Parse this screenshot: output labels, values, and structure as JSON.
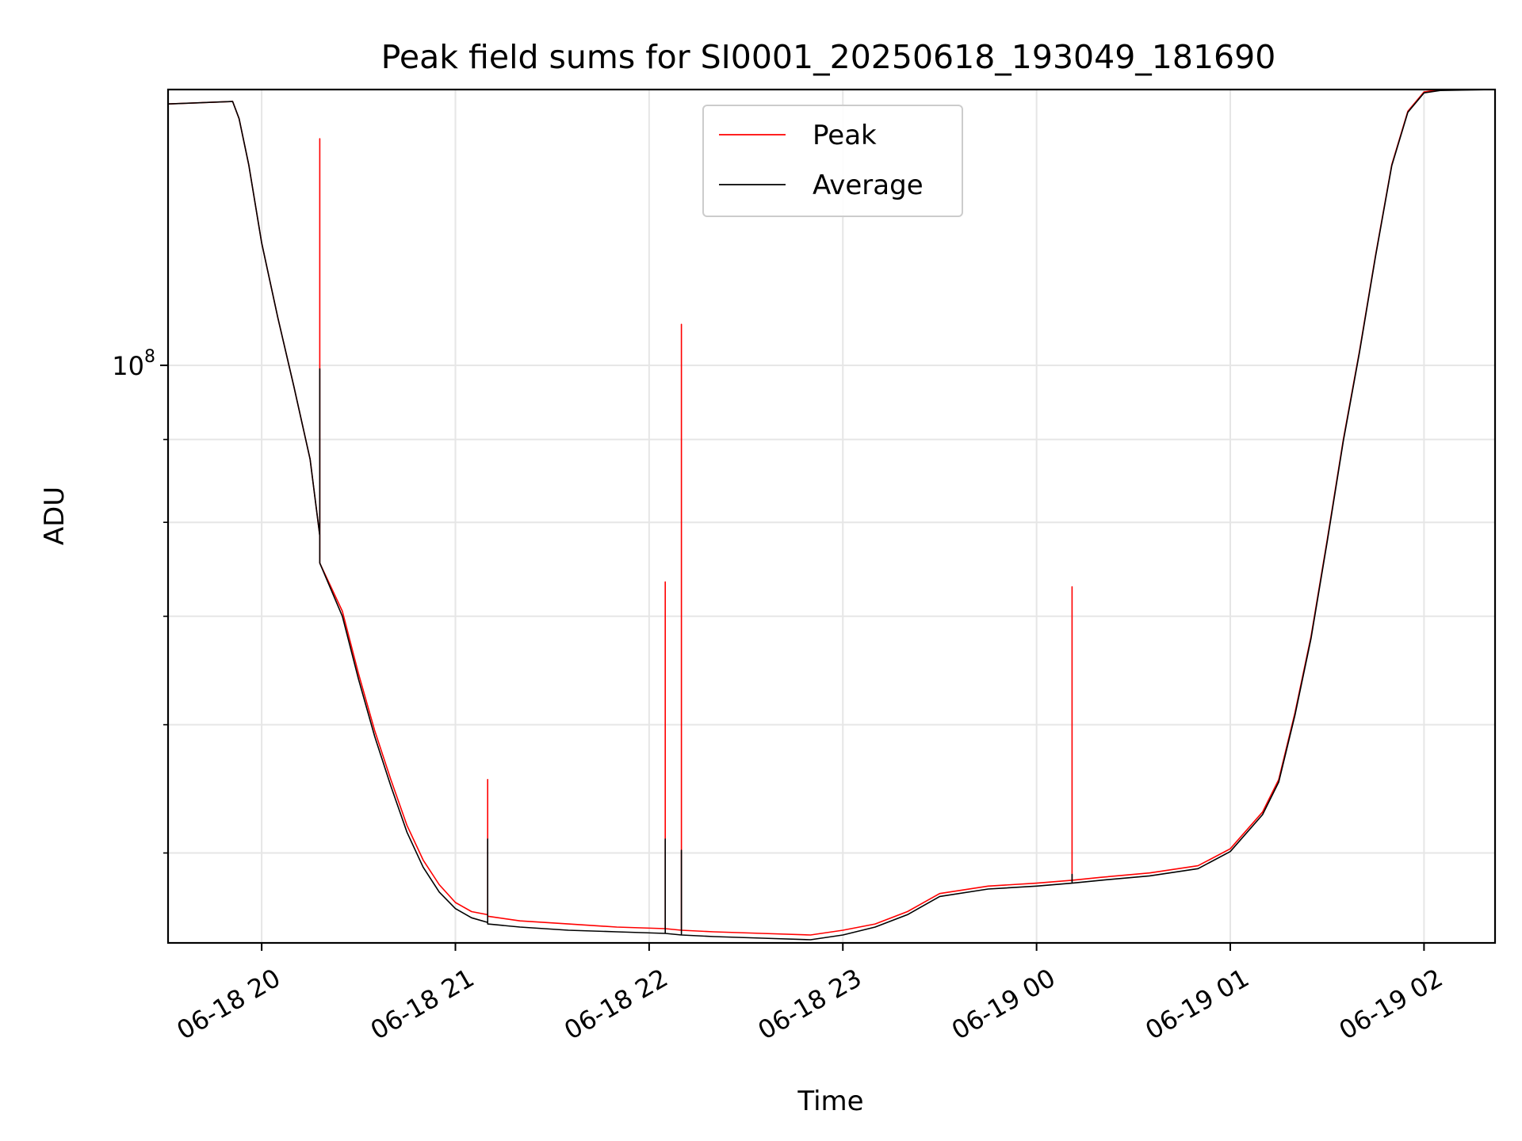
{
  "chart_data": {
    "type": "line",
    "title": "Peak field sums for SI0001_20250618_193049_181690",
    "xlabel": "Time",
    "ylabel": "ADU",
    "yscale": "log",
    "grid": true,
    "legend_placement": "upper-center",
    "xlim": [
      "2025-06-18T19:31",
      "2025-06-19T02:22"
    ],
    "ylim": [
      44000000,
      148000000
    ],
    "x_ticks": [
      "2025-06-18T20:00",
      "2025-06-18T21:00",
      "2025-06-18T22:00",
      "2025-06-18T23:00",
      "2025-06-19T00:00",
      "2025-06-19T01:00",
      "2025-06-19T02:00"
    ],
    "x_tick_labels": [
      "06-18 20",
      "06-18 21",
      "06-18 22",
      "06-18 23",
      "06-19 00",
      "06-19 01",
      "06-19 02"
    ],
    "y_tick_label": {
      "base": "10",
      "exp": "8",
      "value": 100000000
    },
    "series": [
      {
        "name": "Peak",
        "color": "#ff0000",
        "x": [
          "2025-06-18T19:31",
          "2025-06-18T19:51",
          "2025-06-18T19:53",
          "2025-06-18T19:56",
          "2025-06-18T20:00",
          "2025-06-18T20:05",
          "2025-06-18T20:10",
          "2025-06-18T20:15",
          "2025-06-18T20:18",
          "2025-06-18T20:18",
          "2025-06-18T20:18",
          "2025-06-18T20:25",
          "2025-06-18T20:30",
          "2025-06-18T20:35",
          "2025-06-18T20:40",
          "2025-06-18T20:45",
          "2025-06-18T20:50",
          "2025-06-18T20:55",
          "2025-06-18T21:00",
          "2025-06-18T21:05",
          "2025-06-18T21:10",
          "2025-06-18T21:10",
          "2025-06-18T21:10",
          "2025-06-18T21:20",
          "2025-06-18T21:35",
          "2025-06-18T21:50",
          "2025-06-18T22:05",
          "2025-06-18T22:05",
          "2025-06-18T22:05",
          "2025-06-18T22:10",
          "2025-06-18T22:10",
          "2025-06-18T22:10",
          "2025-06-18T22:20",
          "2025-06-18T22:35",
          "2025-06-18T22:50",
          "2025-06-18T23:00",
          "2025-06-18T23:10",
          "2025-06-18T23:20",
          "2025-06-18T23:30",
          "2025-06-18T23:45",
          "2025-06-19T00:00",
          "2025-06-19T00:11",
          "2025-06-19T00:11",
          "2025-06-19T00:11",
          "2025-06-19T00:20",
          "2025-06-19T00:35",
          "2025-06-19T00:50",
          "2025-06-19T01:00",
          "2025-06-19T01:10",
          "2025-06-19T01:15",
          "2025-06-19T01:20",
          "2025-06-19T01:25",
          "2025-06-19T01:30",
          "2025-06-19T01:35",
          "2025-06-19T01:40",
          "2025-06-19T01:45",
          "2025-06-19T01:50",
          "2025-06-19T01:55",
          "2025-06-19T02:00",
          "2025-06-19T02:05",
          "2025-06-19T02:22"
        ],
        "y": [
          145000000,
          145500000,
          142000000,
          133000000,
          119000000,
          107000000,
          97000000,
          87500000,
          78500000,
          138000000,
          75500000,
          70500000,
          64500000,
          59500000,
          55500000,
          52000000,
          49500000,
          47800000,
          46600000,
          46000000,
          45800000,
          55500000,
          45700000,
          45400000,
          45200000,
          45000000,
          44900000,
          73500000,
          44900000,
          44800000,
          106000000,
          44800000,
          44700000,
          44600000,
          44500000,
          44800000,
          45200000,
          46000000,
          47200000,
          47700000,
          47900000,
          48100000,
          73000000,
          48100000,
          48300000,
          48600000,
          49100000,
          50300000,
          53000000,
          55500000,
          61000000,
          68000000,
          78000000,
          90000000,
          102000000,
          117000000,
          133000000,
          143500000,
          147500000,
          148000000,
          148000000
        ]
      },
      {
        "name": "Average",
        "color": "#000000",
        "x": [
          "2025-06-18T19:31",
          "2025-06-18T19:51",
          "2025-06-18T19:53",
          "2025-06-18T19:56",
          "2025-06-18T20:00",
          "2025-06-18T20:05",
          "2025-06-18T20:10",
          "2025-06-18T20:15",
          "2025-06-18T20:18",
          "2025-06-18T20:18",
          "2025-06-18T20:18",
          "2025-06-18T20:25",
          "2025-06-18T20:30",
          "2025-06-18T20:35",
          "2025-06-18T20:40",
          "2025-06-18T20:45",
          "2025-06-18T20:50",
          "2025-06-18T20:55",
          "2025-06-18T21:00",
          "2025-06-18T21:05",
          "2025-06-18T21:10",
          "2025-06-18T21:10",
          "2025-06-18T21:10",
          "2025-06-18T21:20",
          "2025-06-18T21:35",
          "2025-06-18T21:50",
          "2025-06-18T22:05",
          "2025-06-18T22:05",
          "2025-06-18T22:05",
          "2025-06-18T22:10",
          "2025-06-18T22:10",
          "2025-06-18T22:10",
          "2025-06-18T22:20",
          "2025-06-18T22:35",
          "2025-06-18T22:50",
          "2025-06-18T23:00",
          "2025-06-18T23:10",
          "2025-06-18T23:20",
          "2025-06-18T23:30",
          "2025-06-18T23:45",
          "2025-06-19T00:00",
          "2025-06-19T00:11",
          "2025-06-19T00:11",
          "2025-06-19T00:11",
          "2025-06-19T00:20",
          "2025-06-19T00:35",
          "2025-06-19T00:50",
          "2025-06-19T01:00",
          "2025-06-19T01:10",
          "2025-06-19T01:15",
          "2025-06-19T01:20",
          "2025-06-19T01:25",
          "2025-06-19T01:30",
          "2025-06-19T01:35",
          "2025-06-19T01:40",
          "2025-06-19T01:45",
          "2025-06-19T01:50",
          "2025-06-19T01:55",
          "2025-06-19T02:00",
          "2025-06-19T02:05",
          "2025-06-19T02:22"
        ],
        "y": [
          145000000,
          145500000,
          142000000,
          133000000,
          119000000,
          107000000,
          97000000,
          87500000,
          78500000,
          99500000,
          75500000,
          70000000,
          64000000,
          59000000,
          55000000,
          51500000,
          49000000,
          47300000,
          46200000,
          45600000,
          45300000,
          51000000,
          45200000,
          45000000,
          44800000,
          44700000,
          44600000,
          51000000,
          44600000,
          44500000,
          50200000,
          44500000,
          44400000,
          44300000,
          44200000,
          44500000,
          45000000,
          45800000,
          47000000,
          47500000,
          47700000,
          47900000,
          48500000,
          47900000,
          48100000,
          48400000,
          48900000,
          50100000,
          52800000,
          55300000,
          60800000,
          67800000,
          77800000,
          89800000,
          101800000,
          116800000,
          132800000,
          143300000,
          147300000,
          147800000,
          148000000
        ]
      }
    ]
  }
}
